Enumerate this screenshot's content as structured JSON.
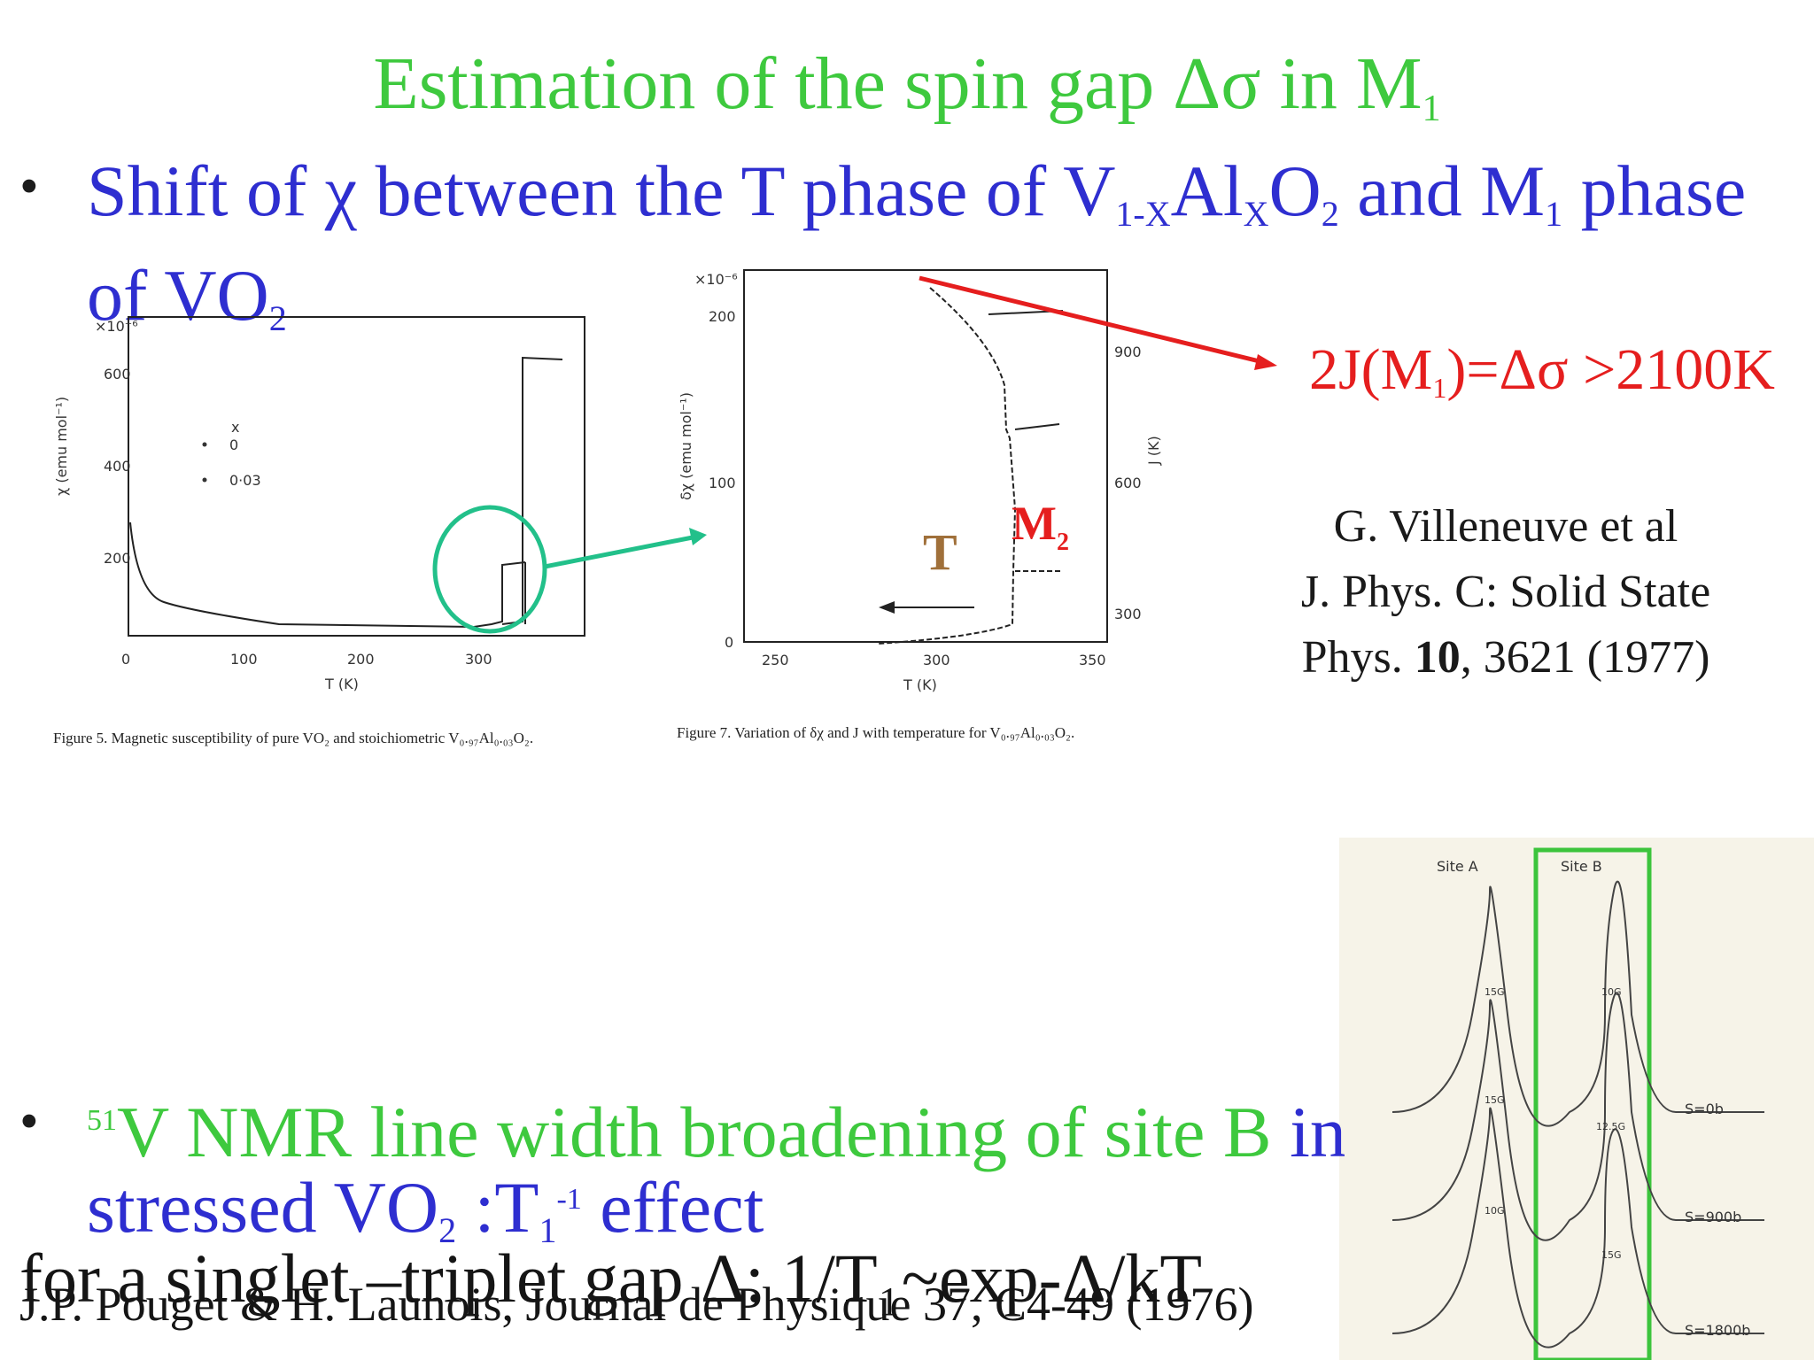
{
  "slide": {
    "title_main": "Estimation of the spin gap Δσ in M",
    "title_sub": "1",
    "bullet1": {
      "t1": "Shift of χ between  the T phase of V",
      "s1": "1-X",
      "t2": "Al",
      "s2": "X",
      "t3": "O",
      "s3": "2",
      "t4": " and M",
      "s4": "1",
      "t5": " phase of VO",
      "s5": "2"
    },
    "result": {
      "t1": "2J(M",
      "s1": "1",
      "t2": ")=Δσ >2100K"
    },
    "citation": {
      "line1": "G. Villeneuve et al",
      "line2": "J. Phys. C: Solid State",
      "line3a": "Phys. ",
      "line3b": "10",
      "line3c": ", 3621 (1977)"
    },
    "bullet2": {
      "sup": "51",
      "t1": "V NMR line width broadening of site B",
      "t2": " in the",
      "t3": "stressed VO",
      "s3": "2",
      "t4": " :T",
      "s4": "1",
      "sup2": "-1",
      "t5": " effect"
    },
    "formula": "for a singlet –triplet gap Δ: 1/T₁~exp-Δ/kT",
    "reference": "J.P. Pouget & H. Launois, Journal de Physique 37, C4-49 (1976)"
  },
  "figure5": {
    "caption": "Figure 5. Magnetic susceptibility of pure VO₂ and stoichiometric V₀.₉₇Al₀.₀₃O₂.",
    "y_exp": "×10⁻⁶",
    "ylabel": "χ (emu mol⁻¹)",
    "xlabel": "T (K)",
    "yticks": [
      "200",
      "400",
      "600"
    ],
    "xticks": [
      "0",
      "100",
      "200",
      "300"
    ],
    "legend_head": "x",
    "legend": [
      "0",
      "0·03"
    ]
  },
  "figure7": {
    "caption": "Figure 7. Variation of δχ and J with temperature for V₀.₉₇Al₀.₀₃O₂.",
    "y_exp": "×10⁻⁶",
    "ylabel": "δχ (emu mol⁻¹)",
    "ylabel_right": "J (K)",
    "xlabel": "T (K)",
    "yticks": [
      "0",
      "100",
      "200"
    ],
    "yticks_right": [
      "300",
      "600",
      "900"
    ],
    "xticks": [
      "250",
      "300",
      "350"
    ],
    "label_T": "T",
    "label_M": "M",
    "label_M_sub": "2"
  },
  "nmr": {
    "site_a": "Site A",
    "site_b": "Site B",
    "widths_a": [
      "15G",
      "15G",
      "10G"
    ],
    "widths_b": [
      "10G",
      "12.5G",
      "15G"
    ],
    "stress_labels": [
      "S=0b",
      "S=900b",
      "S=1800b"
    ]
  },
  "colors": {
    "title": "#3ec93e",
    "body": "#2e2ed0",
    "result": "#e51e1e",
    "highlight": "#22c08a",
    "brown": "#a0703a"
  }
}
